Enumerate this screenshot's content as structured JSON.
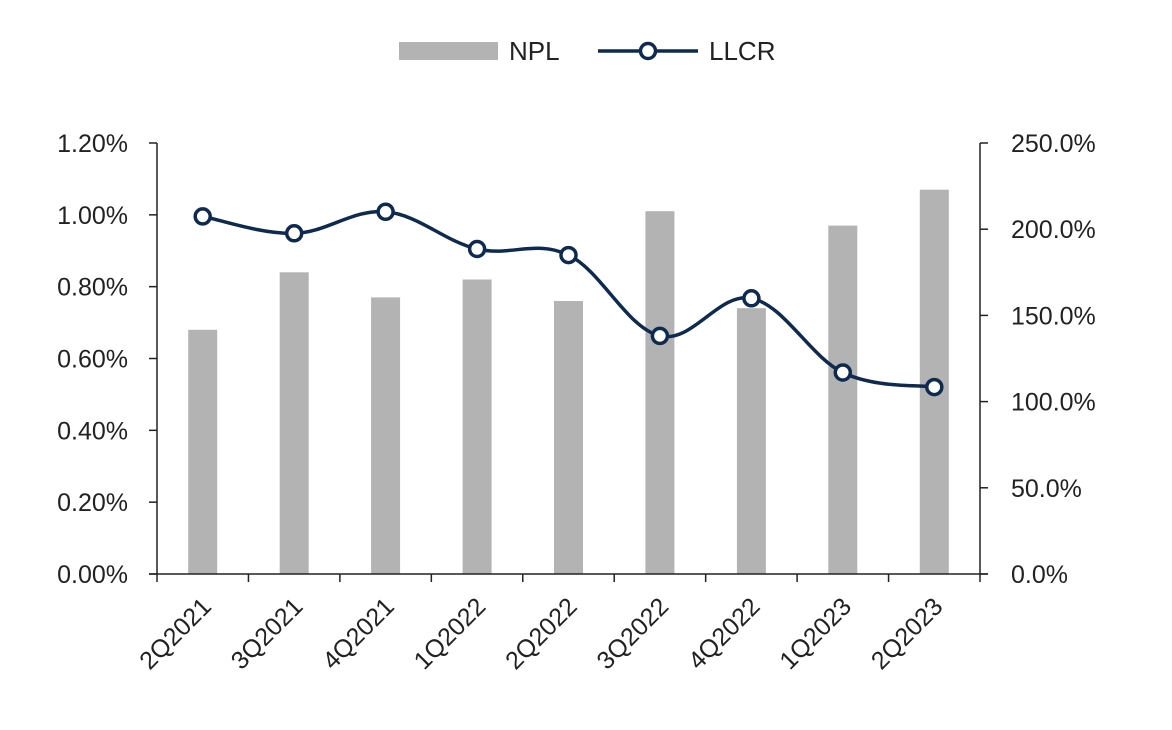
{
  "chart_data": {
    "type": "bar",
    "categories": [
      "2Q2021",
      "3Q2021",
      "4Q2021",
      "1Q2022",
      "2Q2022",
      "3Q2022",
      "4Q2022",
      "1Q2023",
      "2Q2023"
    ],
    "series": [
      {
        "name": "NPL",
        "type": "bar",
        "axis": "left",
        "color": "#b3b3b3",
        "values": [
          0.68,
          0.84,
          0.77,
          0.82,
          0.76,
          1.01,
          0.74,
          0.97,
          1.07
        ]
      },
      {
        "name": "LLCR",
        "type": "line",
        "axis": "right",
        "color": "#0e2a4f",
        "marker": "circle-hollow",
        "values": [
          207.4,
          197.6,
          210.1,
          188.5,
          185.0,
          138.1,
          159.9,
          116.9,
          108.4
        ]
      }
    ],
    "y_left": {
      "ylim": [
        0,
        1.2
      ],
      "ticks": [
        0,
        0.2,
        0.4,
        0.6,
        0.8,
        1.0,
        1.2
      ],
      "tick_labels": [
        "0.00%",
        "0.20%",
        "0.40%",
        "0.60%",
        "0.80%",
        "1.00%",
        "1.20%"
      ]
    },
    "y_right": {
      "ylim": [
        0,
        250
      ],
      "ticks": [
        0,
        50,
        100,
        150,
        200,
        250
      ],
      "tick_labels": [
        "0.0%",
        "50.0%",
        "100.0%",
        "150.0%",
        "200.0%",
        "250.0%"
      ]
    },
    "legend": {
      "position": "top-center",
      "entries": [
        {
          "label": "NPL",
          "icon": "bar-swatch-icon"
        },
        {
          "label": "LLCR",
          "icon": "line-marker-icon"
        }
      ]
    },
    "grid": false,
    "title": "",
    "xlabel": "",
    "ylabel": ""
  }
}
